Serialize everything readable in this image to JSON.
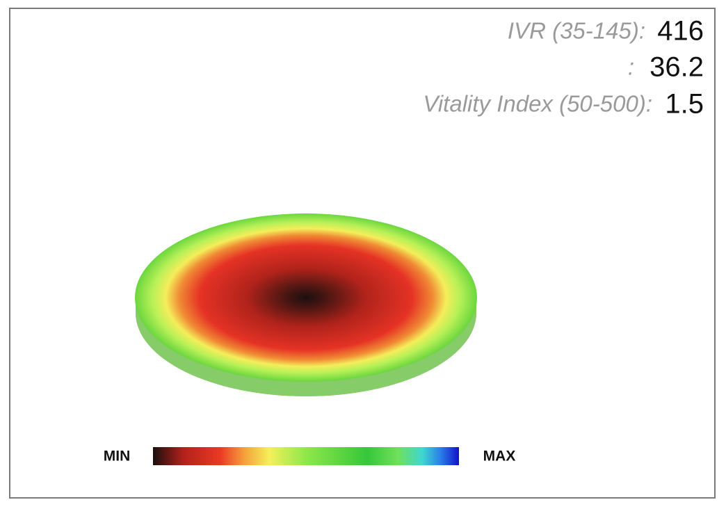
{
  "metrics": [
    {
      "label": "IVR (35-145):",
      "value": 416
    },
    {
      "label": ":",
      "value": 36.2
    },
    {
      "label": "Vitality Index (50-500):",
      "value": 1.5
    }
  ],
  "legend": {
    "min_label": "MIN",
    "max_label": "MAX"
  }
}
